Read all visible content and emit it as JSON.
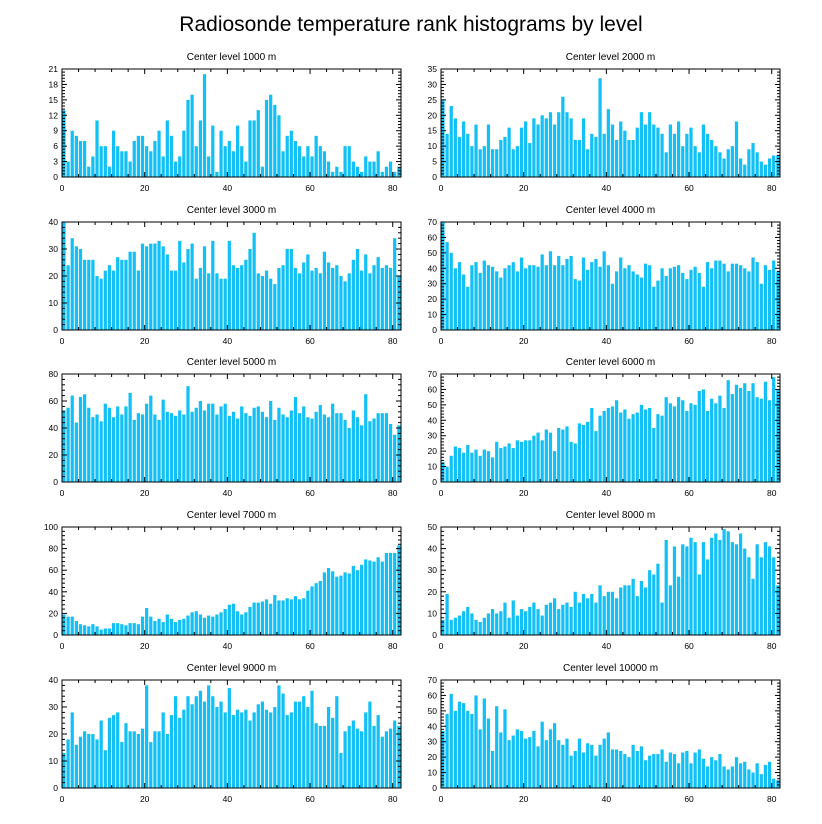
{
  "page": {
    "title": "Radiosonde temperature rank histograms by level"
  },
  "colors": {
    "bar": "#12C0F6",
    "axis": "#000000",
    "background": "#FFFFFF"
  },
  "chart_data": [
    {
      "type": "bar",
      "title": "Center level 1000 m",
      "ylim": [
        0,
        21
      ],
      "yticks": [
        0,
        3,
        6,
        9,
        12,
        15,
        18,
        21
      ],
      "xlim": [
        0,
        82
      ],
      "xticks": [
        0,
        20,
        40,
        60,
        80
      ],
      "values": [
        13,
        3,
        9,
        8,
        7,
        7,
        2,
        4,
        11,
        6,
        6,
        2,
        9,
        6,
        5,
        5,
        3,
        7,
        8,
        8,
        6,
        5,
        7,
        9,
        4,
        11,
        8,
        3,
        4,
        9,
        15,
        16,
        6,
        11,
        20,
        4,
        10,
        1,
        9,
        6,
        7,
        5,
        10,
        6,
        3,
        11,
        11,
        13,
        2,
        15,
        16,
        14,
        12,
        5,
        8,
        9,
        7,
        6,
        4,
        6,
        4,
        8,
        6,
        5,
        3,
        1,
        2,
        1,
        6,
        6,
        3,
        2,
        1,
        4,
        3,
        3,
        5,
        1,
        2,
        3,
        1,
        2
      ]
    },
    {
      "type": "bar",
      "title": "Center level 2000 m",
      "ylim": [
        0,
        35
      ],
      "yticks": [
        0,
        5,
        10,
        15,
        20,
        25,
        30,
        35
      ],
      "xlim": [
        0,
        82
      ],
      "xticks": [
        0,
        20,
        40,
        60,
        80
      ],
      "values": [
        25,
        14,
        23,
        19,
        13,
        18,
        14,
        10,
        17,
        9,
        10,
        17,
        9,
        9,
        12,
        13,
        16,
        9,
        10,
        16,
        18,
        11,
        19,
        17,
        20,
        19,
        21,
        17,
        21,
        26,
        21,
        19,
        12,
        12,
        19,
        9,
        14,
        13,
        32,
        14,
        22,
        17,
        12,
        18,
        15,
        12,
        12,
        16,
        21,
        17,
        21,
        17,
        16,
        14,
        8,
        17,
        14,
        18,
        10,
        14,
        16,
        10,
        8,
        17,
        14,
        12,
        10,
        8,
        6,
        9,
        10,
        18,
        6,
        4,
        9,
        11,
        8,
        5,
        4,
        6,
        7,
        7
      ]
    },
    {
      "type": "bar",
      "title": "Center level 3000 m",
      "ylim": [
        0,
        40
      ],
      "yticks": [
        0,
        10,
        20,
        30,
        40
      ],
      "xlim": [
        0,
        82
      ],
      "xticks": [
        0,
        20,
        40,
        60,
        80
      ],
      "values": [
        40,
        24,
        34,
        31,
        30,
        26,
        26,
        26,
        20,
        19,
        22,
        24,
        22,
        27,
        26,
        26,
        29,
        29,
        22,
        32,
        31,
        32,
        32,
        33,
        31,
        28,
        22,
        22,
        33,
        25,
        30,
        32,
        19,
        23,
        31,
        21,
        33,
        21,
        19,
        19,
        33,
        24,
        23,
        24,
        26,
        30,
        36,
        21,
        20,
        22,
        19,
        17,
        23,
        24,
        30,
        30,
        23,
        21,
        25,
        28,
        22,
        23,
        21,
        29,
        25,
        23,
        24,
        20,
        18,
        21,
        26,
        30,
        22,
        28,
        21,
        24,
        27,
        23,
        24,
        23,
        34,
        20
      ]
    },
    {
      "type": "bar",
      "title": "Center level 4000 m",
      "ylim": [
        0,
        70
      ],
      "yticks": [
        0,
        10,
        20,
        30,
        40,
        50,
        60,
        70
      ],
      "xlim": [
        0,
        82
      ],
      "xticks": [
        0,
        20,
        40,
        60,
        80
      ],
      "values": [
        70,
        57,
        50,
        40,
        44,
        36,
        28,
        42,
        44,
        37,
        45,
        42,
        41,
        38,
        34,
        40,
        42,
        44,
        38,
        47,
        40,
        42,
        42,
        41,
        49,
        42,
        51,
        42,
        48,
        42,
        46,
        48,
        33,
        32,
        47,
        39,
        44,
        46,
        41,
        51,
        42,
        30,
        38,
        47,
        40,
        42,
        38,
        36,
        34,
        43,
        42,
        28,
        32,
        40,
        35,
        40,
        41,
        42,
        37,
        33,
        39,
        41,
        37,
        28,
        44,
        40,
        45,
        45,
        43,
        38,
        43,
        43,
        42,
        40,
        38,
        47,
        44,
        30,
        42,
        39,
        45,
        38
      ]
    },
    {
      "type": "bar",
      "title": "Center level 5000 m",
      "ylim": [
        0,
        80
      ],
      "yticks": [
        0,
        20,
        40,
        60,
        80
      ],
      "xlim": [
        0,
        82
      ],
      "xticks": [
        0,
        20,
        40,
        60,
        80
      ],
      "values": [
        53,
        55,
        64,
        44,
        63,
        65,
        55,
        48,
        50,
        45,
        58,
        55,
        48,
        56,
        50,
        56,
        66,
        46,
        51,
        50,
        58,
        64,
        50,
        46,
        61,
        52,
        51,
        49,
        53,
        50,
        71,
        52,
        55,
        60,
        53,
        58,
        58,
        50,
        56,
        58,
        49,
        52,
        47,
        56,
        51,
        49,
        55,
        56,
        52,
        48,
        60,
        46,
        55,
        50,
        48,
        53,
        63,
        51,
        56,
        48,
        47,
        52,
        57,
        50,
        48,
        58,
        51,
        51,
        46,
        40,
        53,
        48,
        42,
        65,
        45,
        47,
        51,
        51,
        51,
        43,
        35,
        42
      ]
    },
    {
      "type": "bar",
      "title": "Center level 6000 m",
      "ylim": [
        0,
        70
      ],
      "yticks": [
        0,
        10,
        20,
        30,
        40,
        50,
        60,
        70
      ],
      "xlim": [
        0,
        82
      ],
      "xticks": [
        0,
        20,
        40,
        60,
        80
      ],
      "values": [
        13,
        10,
        17,
        23,
        22,
        19,
        24,
        19,
        21,
        17,
        21,
        20,
        16,
        26,
        22,
        23,
        25,
        22,
        27,
        26,
        27,
        27,
        30,
        32,
        27,
        34,
        32,
        20,
        35,
        34,
        36,
        26,
        25,
        38,
        37,
        39,
        48,
        33,
        43,
        46,
        48,
        49,
        53,
        45,
        47,
        41,
        44,
        45,
        50,
        47,
        48,
        35,
        44,
        43,
        55,
        51,
        49,
        55,
        53,
        46,
        51,
        50,
        59,
        60,
        46,
        54,
        51,
        56,
        48,
        66,
        57,
        63,
        61,
        64,
        59,
        64,
        55,
        54,
        65,
        53,
        68,
        60
      ]
    },
    {
      "type": "bar",
      "title": "Center level 7000 m",
      "ylim": [
        0,
        100
      ],
      "yticks": [
        0,
        20,
        40,
        60,
        80,
        100
      ],
      "xlim": [
        0,
        82
      ],
      "xticks": [
        0,
        20,
        40,
        60,
        80
      ],
      "values": [
        19,
        17,
        17,
        13,
        10,
        9,
        8,
        10,
        8,
        5,
        6,
        6,
        11,
        11,
        10,
        9,
        11,
        11,
        10,
        17,
        25,
        17,
        13,
        15,
        12,
        19,
        15,
        12,
        14,
        15,
        18,
        21,
        22,
        19,
        16,
        18,
        17,
        19,
        21,
        24,
        28,
        29,
        22,
        19,
        21,
        26,
        30,
        30,
        31,
        33,
        29,
        37,
        32,
        32,
        34,
        33,
        36,
        33,
        34,
        41,
        45,
        48,
        50,
        58,
        62,
        59,
        54,
        55,
        58,
        57,
        64,
        60,
        65,
        70,
        69,
        68,
        72,
        68,
        76,
        76,
        76,
        83
      ]
    },
    {
      "type": "bar",
      "title": "Center level 8000 m",
      "ylim": [
        0,
        50
      ],
      "yticks": [
        0,
        10,
        20,
        30,
        40,
        50
      ],
      "xlim": [
        0,
        82
      ],
      "xticks": [
        0,
        20,
        40,
        60,
        80
      ],
      "values": [
        7,
        19,
        7,
        8,
        9,
        11,
        13,
        10,
        7,
        6,
        8,
        10,
        12,
        10,
        11,
        15,
        8,
        16,
        9,
        12,
        11,
        13,
        15,
        12,
        9,
        14,
        15,
        17,
        12,
        14,
        15,
        13,
        20,
        15,
        19,
        17,
        19,
        15,
        23,
        18,
        20,
        20,
        17,
        22,
        23,
        23,
        26,
        18,
        25,
        22,
        30,
        28,
        33,
        15,
        44,
        23,
        41,
        27,
        42,
        41,
        45,
        43,
        28,
        43,
        35,
        45,
        47,
        44,
        49,
        48,
        43,
        42,
        47,
        40,
        36,
        26,
        42,
        36,
        43,
        41,
        36,
        23
      ]
    },
    {
      "type": "bar",
      "title": "Center level 9000 m",
      "ylim": [
        0,
        40
      ],
      "yticks": [
        0,
        10,
        20,
        30,
        40
      ],
      "xlim": [
        0,
        82
      ],
      "xticks": [
        0,
        20,
        40,
        60,
        80
      ],
      "values": [
        13,
        18,
        28,
        16,
        19,
        21,
        20,
        20,
        18,
        25,
        14,
        26,
        27,
        28,
        17,
        24,
        21,
        21,
        20,
        22,
        38,
        17,
        21,
        21,
        28,
        20,
        27,
        34,
        26,
        29,
        34,
        31,
        34,
        36,
        32,
        38,
        34,
        30,
        32,
        28,
        37,
        27,
        29,
        28,
        29,
        25,
        28,
        31,
        32,
        29,
        28,
        30,
        38,
        35,
        27,
        28,
        32,
        32,
        34,
        30,
        36,
        24,
        23,
        23,
        30,
        26,
        34,
        13,
        21,
        23,
        25,
        22,
        21,
        28,
        32,
        23,
        27,
        19,
        21,
        22,
        25,
        23
      ]
    },
    {
      "type": "bar",
      "title": "Center level 10000 m",
      "ylim": [
        0,
        70
      ],
      "yticks": [
        0,
        10,
        20,
        30,
        40,
        50,
        60,
        70
      ],
      "xlim": [
        0,
        82
      ],
      "xticks": [
        0,
        20,
        40,
        60,
        80
      ],
      "values": [
        37,
        48,
        61,
        50,
        56,
        55,
        50,
        48,
        60,
        38,
        58,
        45,
        24,
        53,
        36,
        51,
        31,
        34,
        38,
        37,
        32,
        33,
        37,
        27,
        43,
        31,
        38,
        42,
        31,
        28,
        32,
        21,
        24,
        32,
        23,
        29,
        28,
        21,
        28,
        32,
        36,
        25,
        25,
        24,
        22,
        20,
        28,
        24,
        27,
        18,
        21,
        22,
        22,
        25,
        17,
        23,
        22,
        16,
        23,
        24,
        16,
        23,
        25,
        19,
        14,
        20,
        18,
        22,
        14,
        12,
        14,
        20,
        16,
        17,
        12,
        10,
        16,
        9,
        15,
        17,
        6,
        5
      ]
    }
  ]
}
